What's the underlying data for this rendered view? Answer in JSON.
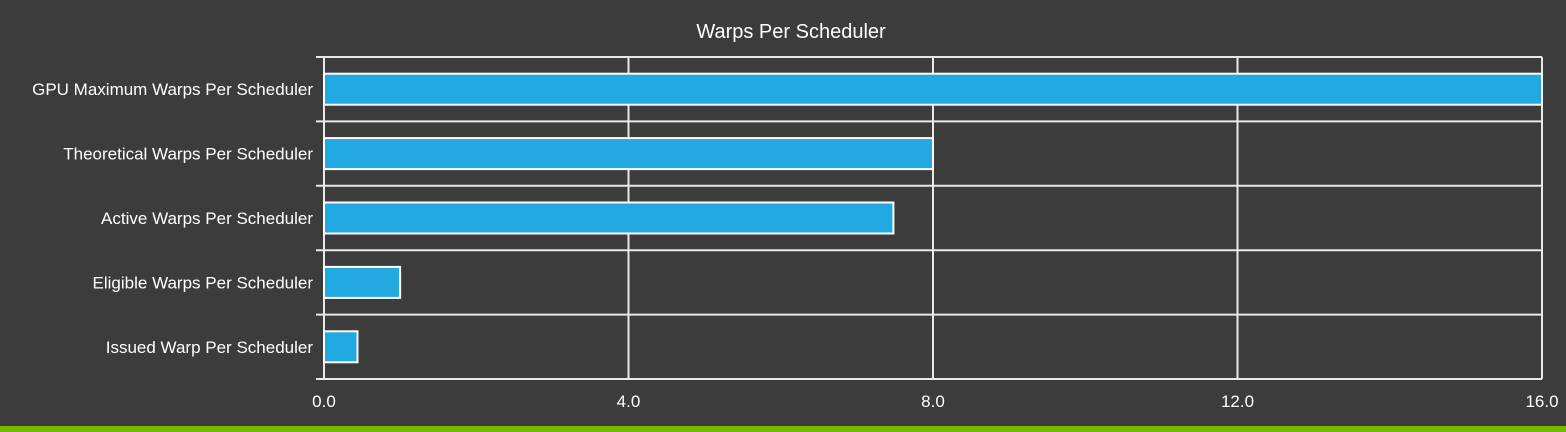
{
  "chart_data": {
    "type": "bar",
    "orientation": "horizontal",
    "title": "Warps Per Scheduler",
    "categories": [
      "GPU Maximum Warps Per Scheduler",
      "Theoretical Warps Per Scheduler",
      "Active Warps Per Scheduler",
      "Eligible Warps Per Scheduler",
      "Issued Warp Per Scheduler"
    ],
    "values": [
      16,
      8,
      7.48,
      1,
      0.44
    ],
    "xlabel": "",
    "ylabel": "",
    "xlim": [
      0,
      16
    ],
    "xticks": [
      "0.0",
      "4.0",
      "8.0",
      "12.0",
      "16.0"
    ],
    "grid": true,
    "legend": "none"
  },
  "colors": {
    "background": "#3c3c3c",
    "bar_fill": "#22a9e2",
    "bar_stroke": "#ffffff",
    "grid": "#e8e8e8",
    "text": "#ffffff",
    "accent": "#76b900"
  }
}
